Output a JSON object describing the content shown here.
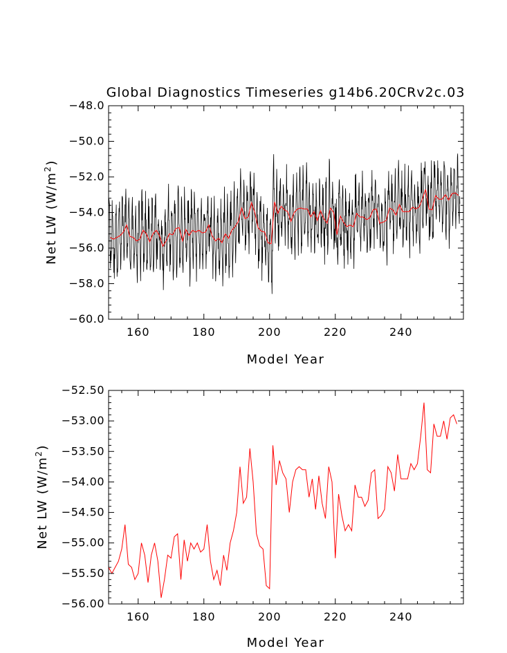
{
  "figure_title": "Global Diagnostics Timeseries g14b6.20CRv2c.03",
  "chart_data": [
    {
      "type": "line",
      "title": "Global Diagnostics Timeseries g14b6.20CRv2c.03",
      "xlabel": "Model Year",
      "ylabel": "Net LW (W/m",
      "ylabel_sup": "2",
      "ylabel_close": ")",
      "xlim": [
        151,
        259
      ],
      "ylim": [
        -60.0,
        -48.0
      ],
      "xticks": [
        160,
        180,
        200,
        220,
        240
      ],
      "xtick_labels": [
        "160",
        "180",
        "200",
        "220",
        "240"
      ],
      "yticks": [
        -60.0,
        -58.0,
        -56.0,
        -54.0,
        -52.0,
        -50.0,
        -48.0
      ],
      "ytick_labels": [
        "−60.0",
        "−58.0",
        "−56.0",
        "−54.0",
        "−52.0",
        "−50.0",
        "−48.0"
      ],
      "grid": false,
      "series": [
        {
          "color": "#000000",
          "x_start": 151,
          "x_step": 0.0833333,
          "annual_means": [
            -55.4,
            -55.5,
            -55.4,
            -55.3,
            -55.1,
            -54.7,
            -55.35,
            -55.4,
            -55.6,
            -55.5,
            -55.0,
            -55.2,
            -55.65,
            -55.2,
            -55.0,
            -55.3,
            -55.9,
            -55.6,
            -55.2,
            -55.25,
            -54.9,
            -54.85,
            -55.6,
            -54.95,
            -55.3,
            -55.0,
            -55.1,
            -55.0,
            -55.15,
            -55.1,
            -54.7,
            -55.3,
            -55.6,
            -55.45,
            -55.7,
            -55.2,
            -55.45,
            -55.0,
            -54.8,
            -54.5,
            -53.75,
            -54.35,
            -54.25,
            -53.45,
            -54.0,
            -54.85,
            -55.05,
            -55.1,
            -55.7,
            -55.75,
            -53.4,
            -54.05,
            -53.65,
            -53.85,
            -53.95,
            -54.5,
            -54.0,
            -53.8,
            -53.75,
            -53.8,
            -53.8,
            -54.25,
            -53.95,
            -54.45,
            -53.9,
            -54.35,
            -54.6,
            -53.75,
            -54.0,
            -55.25,
            -54.2,
            -54.55,
            -54.8,
            -54.7,
            -54.8,
            -54.05,
            -54.25,
            -54.25,
            -54.4,
            -54.3,
            -53.85,
            -53.8,
            -54.6,
            -54.55,
            -54.45,
            -53.75,
            -53.85,
            -54.15,
            -53.55,
            -53.95,
            -53.95,
            -53.95,
            -53.7,
            -53.8,
            -53.7,
            -53.25,
            -52.7,
            -53.8,
            -53.85,
            -53.05,
            -53.25,
            -53.25,
            -53.0,
            -53.3,
            -52.95,
            -52.9,
            -53.05
          ],
          "seasonal_amplitude": 1.8,
          "noise_amplitude": 0.9,
          "note_values": "monthly values = annual mean + seasonal cycle + variability"
        },
        {
          "color": "#ff0000",
          "x_start": 151,
          "x_step": 1,
          "values_ref": "annual_means"
        }
      ]
    },
    {
      "type": "line",
      "title": "",
      "xlabel": "Model Year",
      "ylabel": "Net LW (W/m",
      "ylabel_sup": "2",
      "ylabel_close": ")",
      "xlim": [
        151,
        259
      ],
      "ylim": [
        -56.0,
        -52.5
      ],
      "xticks": [
        160,
        180,
        200,
        220,
        240
      ],
      "xtick_labels": [
        "160",
        "180",
        "200",
        "220",
        "240"
      ],
      "yticks": [
        -56.0,
        -55.5,
        -55.0,
        -54.5,
        -54.0,
        -53.5,
        -53.0,
        -52.5
      ],
      "ytick_labels": [
        "−56.00",
        "−55.50",
        "−55.00",
        "−54.50",
        "−54.00",
        "−53.50",
        "−53.00",
        "−52.50"
      ],
      "grid": false,
      "series": [
        {
          "color": "#ff0000",
          "x_start": 151,
          "x_step": 1,
          "values": [
            -55.4,
            -55.5,
            -55.4,
            -55.3,
            -55.1,
            -54.7,
            -55.35,
            -55.4,
            -55.6,
            -55.5,
            -55.0,
            -55.2,
            -55.65,
            -55.2,
            -55.0,
            -55.3,
            -55.9,
            -55.6,
            -55.2,
            -55.25,
            -54.9,
            -54.85,
            -55.6,
            -54.95,
            -55.3,
            -55.0,
            -55.1,
            -55.0,
            -55.15,
            -55.1,
            -54.7,
            -55.3,
            -55.6,
            -55.45,
            -55.7,
            -55.2,
            -55.45,
            -55.0,
            -54.8,
            -54.5,
            -53.75,
            -54.35,
            -54.25,
            -53.45,
            -54.0,
            -54.85,
            -55.05,
            -55.1,
            -55.7,
            -55.75,
            -53.4,
            -54.05,
            -53.65,
            -53.85,
            -53.95,
            -54.5,
            -54.0,
            -53.8,
            -53.75,
            -53.8,
            -53.8,
            -54.25,
            -53.95,
            -54.45,
            -53.9,
            -54.35,
            -54.6,
            -53.75,
            -54.0,
            -55.25,
            -54.2,
            -54.55,
            -54.8,
            -54.7,
            -54.8,
            -54.05,
            -54.25,
            -54.25,
            -54.4,
            -54.3,
            -53.85,
            -53.8,
            -54.6,
            -54.55,
            -54.45,
            -53.75,
            -53.85,
            -54.15,
            -53.55,
            -53.95,
            -53.95,
            -53.95,
            -53.7,
            -53.8,
            -53.7,
            -53.25,
            -52.7,
            -53.8,
            -53.85,
            -53.05,
            -53.25,
            -53.25,
            -53.0,
            -53.3,
            -52.95,
            -52.9,
            -53.05
          ]
        }
      ]
    }
  ]
}
